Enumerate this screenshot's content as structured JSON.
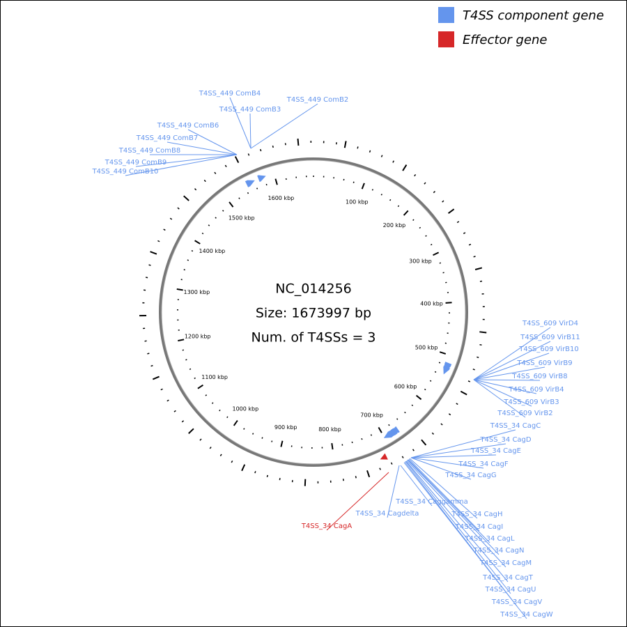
{
  "legend": [
    {
      "label": "T4SS component gene",
      "color": "#6495ed"
    },
    {
      "label": "Effector gene",
      "color": "#d62728"
    }
  ],
  "center": {
    "name": "NC_014256",
    "size": {
      "value": 1673997,
      "label": "Size: 1673997 bp"
    },
    "count": "Num. of T4SSs = 3"
  },
  "ticks": [
    {
      "value": 100000,
      "label": "100 kbp"
    },
    {
      "value": 200000,
      "label": "200 kbp"
    },
    {
      "value": 300000,
      "label": "300 kbp"
    },
    {
      "value": 400000,
      "label": "400 kbp"
    },
    {
      "value": 500000,
      "label": "500 kbp"
    },
    {
      "value": 600000,
      "label": "600 kbp"
    },
    {
      "value": 700000,
      "label": "700 kbp"
    },
    {
      "value": 800000,
      "label": "800 kbp"
    },
    {
      "value": 900000,
      "label": "900 kbp"
    },
    {
      "value": 1000000,
      "label": "1000 kbp"
    },
    {
      "value": 1100000,
      "label": "1100 kbp"
    },
    {
      "value": 1200000,
      "label": "1200 kbp"
    },
    {
      "value": 1300000,
      "label": "1300 kbp"
    },
    {
      "value": 1400000,
      "label": "1400 kbp"
    },
    {
      "value": 1500000,
      "label": "1500 kbp"
    },
    {
      "value": 1600000,
      "label": "1600 kbp"
    }
  ],
  "genes": [
    {
      "name": "T4SS_449 ComB4",
      "kind": 0,
      "position": 1576000
    },
    {
      "name": "T4SS_449 ComB3",
      "kind": 0,
      "position": 1577000
    },
    {
      "name": "T4SS_449 ComB2",
      "kind": 0,
      "position": 1578000
    },
    {
      "name": "T4SS_449 ComB6",
      "kind": 0,
      "position": 1552000
    },
    {
      "name": "T4SS_449 ComB7",
      "kind": 0,
      "position": 1553000
    },
    {
      "name": "T4SS_449 ComB8",
      "kind": 0,
      "position": 1554000
    },
    {
      "name": "T4SS_449 ComB9",
      "kind": 0,
      "position": 1555000
    },
    {
      "name": "T4SS_449 ComB10",
      "kind": 0,
      "position": 1556000
    },
    {
      "name": "T4SS_609 VirD4",
      "kind": 0,
      "position": 521000
    },
    {
      "name": "T4SS_609 VirB11",
      "kind": 0,
      "position": 522000
    },
    {
      "name": "T4SS_609 VirB10",
      "kind": 0,
      "position": 523000
    },
    {
      "name": "T4SS_609 VirB9",
      "kind": 0,
      "position": 524000
    },
    {
      "name": "T4SS_609 VirB8",
      "kind": 0,
      "position": 525000
    },
    {
      "name": "T4SS_609 VirB4",
      "kind": 0,
      "position": 528000
    },
    {
      "name": "T4SS_609 VirB3",
      "kind": 0,
      "position": 530000
    },
    {
      "name": "T4SS_609 VirB2",
      "kind": 0,
      "position": 531000
    },
    {
      "name": "T4SS_34 CagC",
      "kind": 0,
      "position": 677000
    },
    {
      "name": "T4SS_34 CagD",
      "kind": 0,
      "position": 678000
    },
    {
      "name": "T4SS_34 CagE",
      "kind": 0,
      "position": 679000
    },
    {
      "name": "T4SS_34 CagF",
      "kind": 0,
      "position": 682000
    },
    {
      "name": "T4SS_34 CagG",
      "kind": 0,
      "position": 683000
    },
    {
      "name": "T4SS_34 Caggamma",
      "kind": 0,
      "position": 688000
    },
    {
      "name": "T4SS_34 Cagdelta",
      "kind": 0,
      "position": 690000
    },
    {
      "name": "T4SS_34 CagH",
      "kind": 0,
      "position": 684000
    },
    {
      "name": "T4SS_34 CagI",
      "kind": 0,
      "position": 685000
    },
    {
      "name": "T4SS_34 CagL",
      "kind": 0,
      "position": 686000
    },
    {
      "name": "T4SS_34 CagN",
      "kind": 0,
      "position": 687000
    },
    {
      "name": "T4SS_34 CagM",
      "kind": 0,
      "position": 686500
    },
    {
      "name": "T4SS_34 CagT",
      "kind": 0,
      "position": 692000
    },
    {
      "name": "T4SS_34 CagU",
      "kind": 0,
      "position": 693000
    },
    {
      "name": "T4SS_34 CagV",
      "kind": 0,
      "position": 694000
    },
    {
      "name": "T4SS_34 CagW",
      "kind": 0,
      "position": 695000
    },
    {
      "name": "T4SS_34 CagA",
      "kind": 1,
      "position": 718000
    }
  ]
}
